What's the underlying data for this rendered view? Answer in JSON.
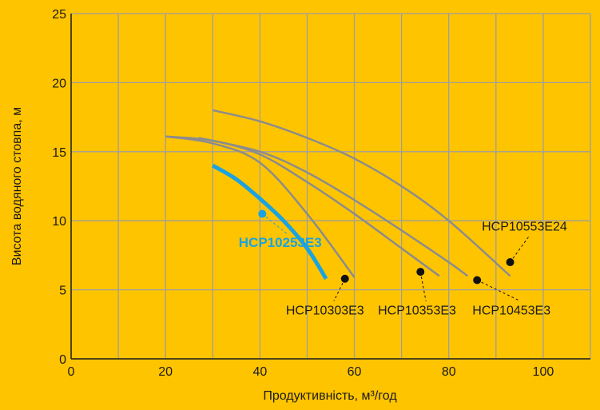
{
  "colors": {
    "background": "#FFC400",
    "grid": "#9E9E9E",
    "curve": "#8C8C8C",
    "highlight": "#1AA3E0",
    "marker": "#111111",
    "axis": "#1a1a1a"
  },
  "chart_data": {
    "type": "line",
    "title": "",
    "xlabel": "Продуктивність, м³/год",
    "ylabel": "Висота водяного стовпа, м",
    "xlim": [
      0,
      110
    ],
    "ylim": [
      0,
      25
    ],
    "xticks": [
      0,
      20,
      40,
      60,
      80,
      100
    ],
    "yticks": [
      0,
      5,
      10,
      15,
      20,
      25
    ],
    "grid": true,
    "series": [
      {
        "name": "HCP10253E3",
        "highlight": true,
        "points": [
          [
            30,
            14
          ],
          [
            35,
            13
          ],
          [
            40,
            11.6
          ],
          [
            45,
            10
          ],
          [
            50,
            8
          ],
          [
            54,
            5.8
          ]
        ],
        "marker": [
          40.5,
          10.5
        ],
        "label_pos": [
          35.5,
          8.1
        ]
      },
      {
        "name": "HCP10303E3",
        "highlight": false,
        "points": [
          [
            20,
            16.1
          ],
          [
            30,
            15.6
          ],
          [
            40,
            14.2
          ],
          [
            50,
            10.5
          ],
          [
            60,
            5.9
          ]
        ],
        "marker": [
          58,
          5.8
        ],
        "label_pos": [
          45.5,
          3.2
        ]
      },
      {
        "name": "HCP10353E3",
        "highlight": false,
        "points": [
          [
            20,
            16.1
          ],
          [
            30,
            15.8
          ],
          [
            40,
            14.8
          ],
          [
            50,
            12.8
          ],
          [
            60,
            10.5
          ],
          [
            70,
            8
          ],
          [
            78,
            6
          ]
        ],
        "marker": [
          74,
          6.3
        ],
        "label_pos": [
          65,
          3.2
        ]
      },
      {
        "name": "HCP10453E3",
        "highlight": false,
        "points": [
          [
            27,
            16
          ],
          [
            40,
            15
          ],
          [
            50,
            13.5
          ],
          [
            60,
            11.5
          ],
          [
            70,
            9.3
          ],
          [
            80,
            7
          ],
          [
            84,
            6
          ]
        ],
        "marker": [
          86,
          5.7
        ],
        "label_pos": [
          85,
          3.2
        ]
      },
      {
        "name": "HCP10553E24",
        "highlight": false,
        "points": [
          [
            30,
            18
          ],
          [
            40,
            17.2
          ],
          [
            50,
            16
          ],
          [
            60,
            14.5
          ],
          [
            70,
            12.5
          ],
          [
            80,
            10
          ],
          [
            93,
            6
          ]
        ],
        "marker": [
          93,
          7
        ],
        "label_pos": [
          87,
          9.3
        ]
      }
    ]
  }
}
